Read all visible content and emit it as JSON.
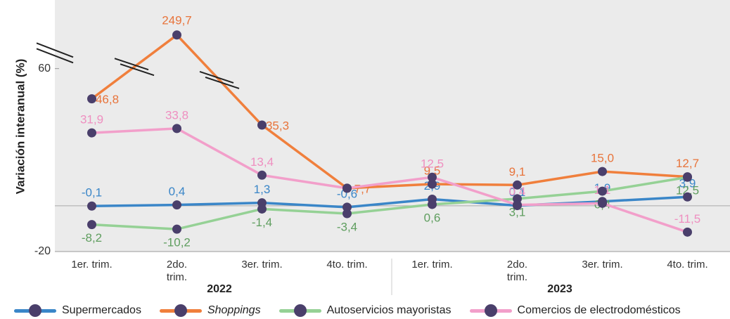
{
  "chart_data": {
    "type": "line",
    "y_label": "Variación interanual (%)",
    "categories": [
      "1er. trim.",
      "2do. trim.",
      "3er. trim.",
      "4to. trim.",
      "1er. trim.",
      "2do. trim.",
      "3er. trim.",
      "4to. trim."
    ],
    "groups": [
      {
        "name": "2022",
        "span": [
          0,
          3
        ]
      },
      {
        "name": "2023",
        "span": [
          4,
          7
        ]
      }
    ],
    "ylim": [
      -20,
      265
    ],
    "yticks": [
      -20,
      60
    ],
    "ybreak": [
      65,
      240
    ],
    "marker_color": "#4a3f6b",
    "series": [
      {
        "name": "Supermercados",
        "color": "#3a86c8",
        "label_color": "#3a86c8",
        "values": [
          -0.1,
          0.4,
          1.3,
          -0.6,
          2.9,
          0.1,
          1.9,
          3.9
        ],
        "value_labels": [
          "-0,1",
          "0,4",
          "1,3",
          "-0,6",
          "2,9",
          "0,1",
          "1,9",
          "3,9"
        ]
      },
      {
        "name": "Shoppings",
        "color": "#f07f3c",
        "label_color": "#e8743b",
        "italic": true,
        "values": [
          46.8,
          249.7,
          35.3,
          7.7,
          9.5,
          9.1,
          15.0,
          12.7
        ],
        "value_labels": [
          "46,8",
          "249,7",
          "35,3",
          "7,7",
          "9,5",
          "9,1",
          "15,0",
          "12,7"
        ]
      },
      {
        "name": "Autoservicios mayoristas",
        "color": "#95d195",
        "label_color": "#5f9e5f",
        "values": [
          -8.2,
          -10.2,
          -1.4,
          -3.4,
          0.6,
          3.1,
          6.4,
          12.5
        ],
        "value_labels": [
          "-8,2",
          "-10,2",
          "-1,4",
          "-3,4",
          "0,6",
          "3,1",
          "6,4",
          "12,5"
        ]
      },
      {
        "name": "Comercios de electrodomésticos",
        "color": "#f29fca",
        "label_color": "#ef8fc0",
        "values": [
          31.9,
          33.8,
          13.4,
          7.7,
          12.5,
          0.4,
          1.1,
          -11.5
        ],
        "value_labels": [
          "31,9",
          "33,8",
          "13,4",
          null,
          "12,5",
          "0,4",
          "1,1",
          "-11,5"
        ]
      }
    ]
  }
}
